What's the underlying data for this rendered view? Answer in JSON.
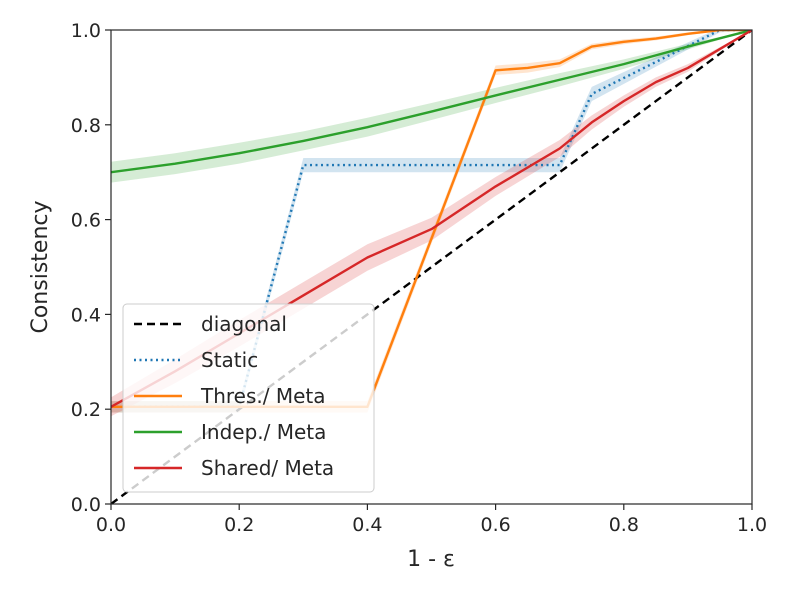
{
  "chart_data": {
    "type": "line",
    "title": "",
    "xlabel": "1 - ε",
    "ylabel": "Consistency",
    "xlim": [
      0.0,
      1.0
    ],
    "ylim": [
      0.0,
      1.0
    ],
    "xticks": [
      "0.0",
      "0.2",
      "0.4",
      "0.6",
      "0.8",
      "1.0"
    ],
    "yticks": [
      "0.0",
      "0.2",
      "0.4",
      "0.6",
      "0.8",
      "1.0"
    ],
    "grid": false,
    "legend_position": "lower-left",
    "series": [
      {
        "name": "diagonal",
        "color": "#000000",
        "style": "dashed",
        "x": [
          0.0,
          1.0
        ],
        "y": [
          0.0,
          1.0
        ]
      },
      {
        "name": "Static",
        "color": "#1f77b4",
        "style": "dotted",
        "x": [
          0.0,
          0.2,
          0.3,
          0.7,
          0.75,
          0.95,
          1.0
        ],
        "y": [
          0.205,
          0.205,
          0.715,
          0.715,
          0.865,
          1.0,
          1.0
        ],
        "band": [
          0.012,
          0.012,
          0.015,
          0.015,
          0.015,
          0.005,
          0.0
        ]
      },
      {
        "name": "Thres./ Meta",
        "color": "#ff7f0e",
        "style": "solid",
        "x": [
          0.0,
          0.4,
          0.6,
          0.65,
          0.7,
          0.75,
          0.8,
          0.85,
          0.9,
          0.95,
          1.0
        ],
        "y": [
          0.205,
          0.205,
          0.915,
          0.92,
          0.93,
          0.965,
          0.975,
          0.982,
          0.992,
          1.0,
          1.0
        ],
        "band": [
          0.012,
          0.012,
          0.01,
          0.01,
          0.008,
          0.006,
          0.005,
          0.004,
          0.003,
          0.002,
          0.0
        ]
      },
      {
        "name": "Indep./ Meta",
        "color": "#2ca02c",
        "style": "solid",
        "x": [
          0.0,
          0.1,
          0.2,
          0.3,
          0.4,
          0.5,
          0.6,
          0.7,
          0.8,
          0.9,
          1.0
        ],
        "y": [
          0.7,
          0.718,
          0.74,
          0.766,
          0.795,
          0.828,
          0.862,
          0.895,
          0.928,
          0.965,
          1.0
        ],
        "band": [
          0.022,
          0.022,
          0.022,
          0.02,
          0.02,
          0.018,
          0.016,
          0.014,
          0.01,
          0.006,
          0.0
        ]
      },
      {
        "name": "Shared/ Meta",
        "color": "#d62728",
        "style": "solid",
        "x": [
          0.0,
          0.1,
          0.2,
          0.3,
          0.4,
          0.5,
          0.6,
          0.7,
          0.75,
          0.8,
          0.85,
          0.9,
          1.0
        ],
        "y": [
          0.205,
          0.28,
          0.36,
          0.44,
          0.52,
          0.58,
          0.67,
          0.75,
          0.805,
          0.85,
          0.89,
          0.92,
          1.0
        ],
        "band": [
          0.02,
          0.025,
          0.028,
          0.028,
          0.028,
          0.024,
          0.02,
          0.018,
          0.015,
          0.012,
          0.01,
          0.008,
          0.0
        ]
      }
    ]
  }
}
